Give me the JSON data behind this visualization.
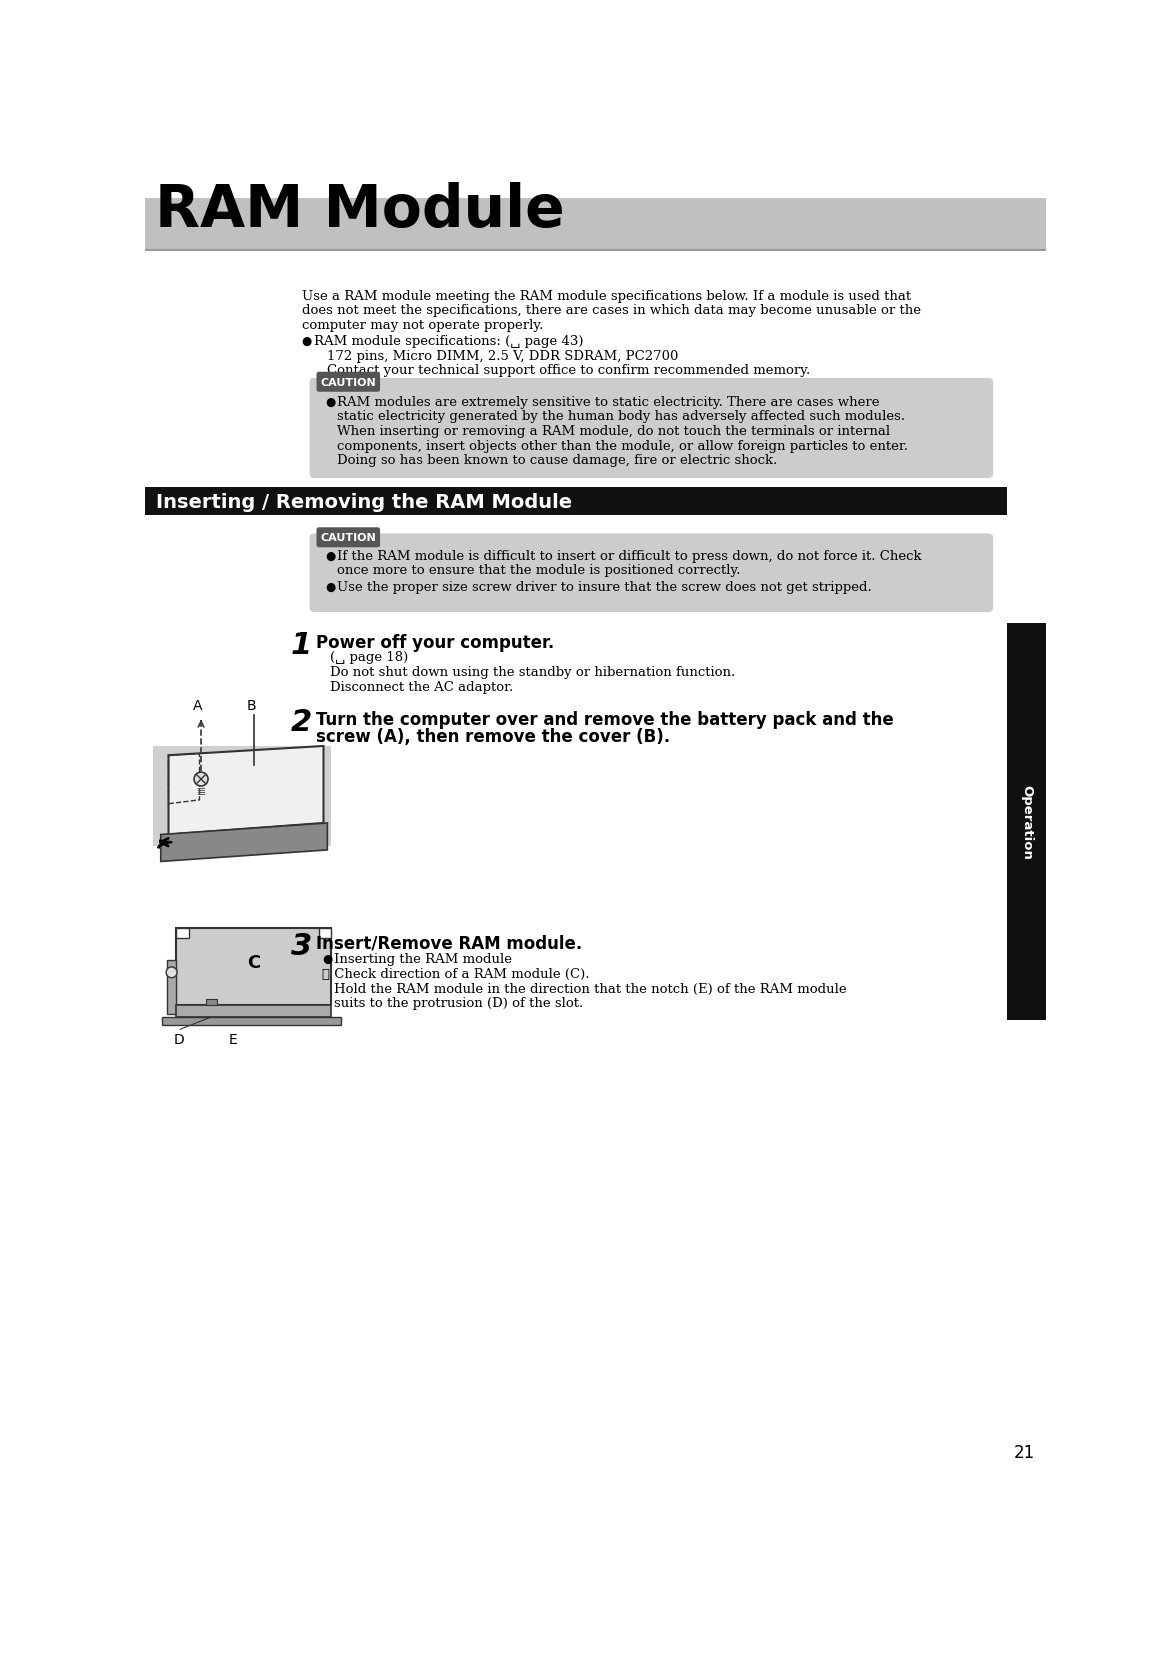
{
  "page_bg": "#ffffff",
  "header_bg": "#c0c0c0",
  "header_text": "RAM Module",
  "header_text_color": "#000000",
  "header_font_size": 42,
  "section_bar_bg": "#111111",
  "section_bar_text": "Inserting / Removing the RAM Module",
  "section_bar_text_color": "#ffffff",
  "section_bar_font_size": 14,
  "caution_tag_bg": "#555555",
  "caution_tag_text": "CAUTION",
  "caution_tag_text_color": "#ffffff",
  "caution_box_bg": "#cccccc",
  "sidebar_bg": "#111111",
  "sidebar_text": "Operation",
  "sidebar_text_color": "#ffffff",
  "page_number": "21",
  "body_font_size": 9.5,
  "step_number_font_size": 22,
  "step_bold_font_size": 12,
  "intro_text_line1": "Use a RAM module meeting the RAM module specifications below. If a module is used that",
  "intro_text_line2": "does not meet the specifications, there are cases in which data may become unusable or the",
  "intro_text_line3": "computer may not operate properly.",
  "bullet_spec_line1": "RAM module specifications: (␣ page 43)",
  "bullet_spec_line2": "172 pins, Micro DIMM, 2.5 V, DDR SDRAM, PC2700",
  "bullet_spec_line3": "Contact your technical support office to confirm recommended memory.",
  "caution1_line1": "RAM modules are extremely sensitive to static electricity. There are cases where",
  "caution1_line2": "static electricity generated by the human body has adversely affected such modules.",
  "caution1_line3": "When inserting or removing a RAM module, do not touch the terminals or internal",
  "caution1_line4": "components, insert objects other than the module, or allow foreign particles to enter.",
  "caution1_line5": "Doing so has been known to cause damage, fire or electric shock.",
  "caution2_line1": "If the RAM module is difficult to insert or difficult to press down, do not force it. Check",
  "caution2_line2": "once more to ensure that the module is positioned correctly.",
  "caution2_line3": "Use the proper size screw driver to insure that the screw does not get stripped.",
  "step1_num": "1",
  "step1_bold": "Power off your computer.",
  "step1_sub1": "(␣ page 18)",
  "step1_sub2": "Do not shut down using the standby or hibernation function.",
  "step1_sub3": "Disconnect the AC adaptor.",
  "step2_num": "2",
  "step2_bold_line1": "Turn the computer over and remove the battery pack and the",
  "step2_bold_line2": "screw (A), then remove the cover (B).",
  "step3_num": "3",
  "step3_bold": "Insert/Remove RAM module.",
  "step3_sub1": "Inserting the RAM module",
  "step3_sub2": "① Check direction of a RAM module (C).",
  "step3_sub3": "Hold the RAM module in the direction that the notch (E) of the RAM module",
  "step3_sub4": "suits to the protrusion (D) of the slot."
}
